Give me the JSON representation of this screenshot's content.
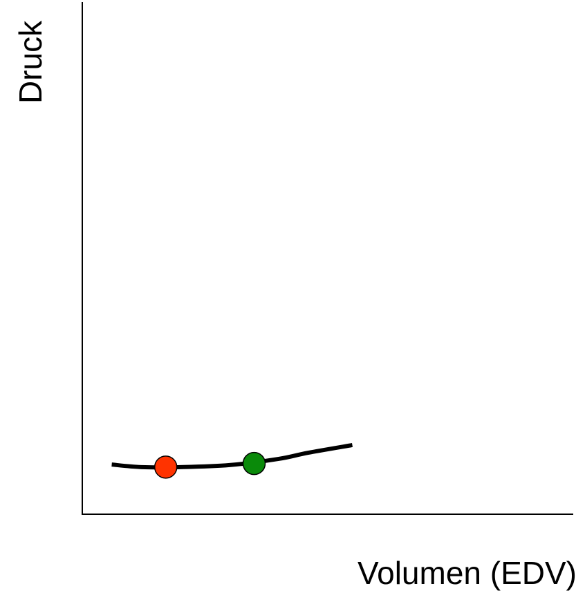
{
  "diagram": {
    "ylabel": "Druck",
    "xlabel": "Volumen (EDV)",
    "curve_color": "#000000",
    "axis_color": "#000000"
  },
  "chart_data": {
    "type": "line",
    "xlabel": "Volumen (EDV)",
    "ylabel": "Druck",
    "series": [
      {
        "color": "#000000",
        "x": [
          0.06,
          0.12,
          0.2,
          0.3,
          0.4,
          0.46,
          0.55
        ],
        "y": [
          0.097,
          0.092,
          0.092,
          0.096,
          0.108,
          0.12,
          0.135
        ]
      }
    ],
    "points": [
      {
        "x": 0.17,
        "y": 0.092,
        "color": "#ff3300"
      },
      {
        "x": 0.35,
        "y": 0.099,
        "color": "#0a8a0a"
      }
    ],
    "xlim": [
      0,
      1
    ],
    "ylim": [
      0,
      1
    ]
  }
}
